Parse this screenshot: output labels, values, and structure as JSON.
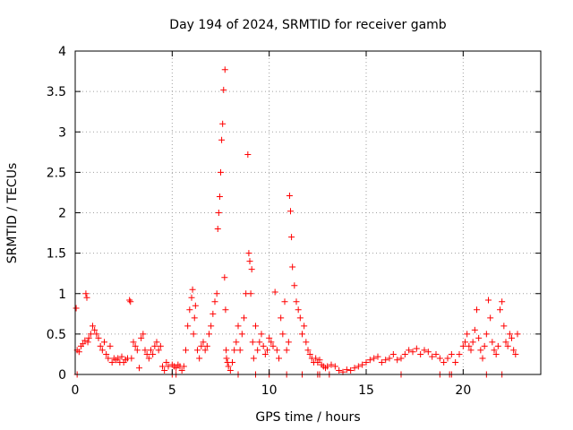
{
  "chart_data": {
    "type": "scatter",
    "title": "Day 194 of 2024, SRMTID for receiver gamb",
    "xlabel": "GPS time / hours",
    "ylabel": "SRMTID / TECUs",
    "xlim": [
      0,
      24
    ],
    "ylim": [
      0,
      4
    ],
    "xticks": [
      0,
      5,
      10,
      15,
      20
    ],
    "xtick_labels": [
      "0",
      "5",
      "10",
      "15",
      "20"
    ],
    "yticks": [
      0,
      0.5,
      1,
      1.5,
      2,
      2.5,
      3,
      3.5,
      4
    ],
    "ytick_labels": [
      "0",
      "0.5",
      "1",
      "1.5",
      "2",
      "2.5",
      "3",
      "3.5",
      "4"
    ],
    "grid": true,
    "marker": "+",
    "color": "#ff0000",
    "series": [
      {
        "name": "SRMTID",
        "x": [
          0.05,
          0.1,
          0.2,
          0.3,
          0.4,
          0.5,
          0.55,
          0.6,
          0.65,
          0.7,
          0.8,
          0.9,
          1.0,
          1.1,
          1.2,
          1.3,
          1.4,
          1.5,
          1.6,
          1.7,
          1.8,
          1.9,
          2.0,
          2.1,
          2.2,
          2.3,
          2.4,
          2.5,
          2.6,
          2.7,
          2.8,
          2.85,
          2.9,
          3.0,
          3.1,
          3.2,
          3.3,
          3.4,
          3.5,
          3.6,
          3.7,
          3.8,
          3.9,
          4.0,
          4.1,
          4.2,
          4.3,
          4.4,
          4.5,
          4.6,
          4.7,
          4.8,
          5.0,
          5.1,
          5.2,
          5.3,
          5.4,
          5.5,
          5.6,
          5.7,
          5.8,
          5.9,
          6.0,
          6.05,
          6.1,
          6.15,
          6.2,
          6.3,
          6.4,
          6.5,
          6.6,
          6.7,
          6.8,
          6.9,
          7.0,
          7.1,
          7.2,
          7.3,
          7.35,
          7.4,
          7.45,
          7.5,
          7.55,
          7.6,
          7.65,
          7.7,
          7.72,
          7.75,
          7.78,
          7.8,
          7.85,
          7.9,
          8.0,
          8.1,
          8.2,
          8.3,
          8.4,
          8.5,
          8.6,
          8.7,
          8.8,
          8.9,
          8.95,
          9.0,
          9.05,
          9.1,
          9.15,
          9.2,
          9.3,
          9.4,
          9.5,
          9.6,
          9.7,
          9.8,
          9.9,
          10.0,
          10.1,
          10.2,
          10.3,
          10.4,
          10.5,
          10.6,
          10.7,
          10.8,
          10.9,
          11.0,
          11.05,
          11.1,
          11.15,
          11.2,
          11.3,
          11.4,
          11.5,
          11.6,
          11.7,
          11.8,
          11.9,
          12.0,
          12.1,
          12.2,
          12.3,
          12.4,
          12.5,
          12.6,
          12.7,
          12.8,
          12.9,
          13.0,
          13.2,
          13.4,
          13.6,
          13.8,
          14.0,
          14.2,
          14.4,
          14.6,
          14.8,
          15.0,
          15.2,
          15.4,
          15.6,
          15.8,
          16.0,
          16.2,
          16.4,
          16.6,
          16.8,
          17.0,
          17.2,
          17.4,
          17.6,
          17.8,
          18.0,
          18.2,
          18.4,
          18.6,
          18.8,
          19.0,
          19.2,
          19.4,
          19.6,
          19.8,
          20.0,
          20.1,
          20.2,
          20.3,
          20.4,
          20.5,
          20.6,
          20.7,
          20.8,
          20.9,
          21.0,
          21.1,
          21.2,
          21.3,
          21.4,
          21.5,
          21.6,
          21.7,
          21.8,
          21.9,
          22.0,
          22.1,
          22.2,
          22.3,
          22.4,
          22.5,
          22.6,
          22.7,
          22.8
        ],
        "values": [
          0.82,
          0.3,
          0.28,
          0.35,
          0.38,
          0.42,
          1.0,
          0.95,
          0.4,
          0.45,
          0.5,
          0.6,
          0.55,
          0.5,
          0.45,
          0.35,
          0.3,
          0.4,
          0.25,
          0.2,
          0.35,
          0.15,
          0.2,
          0.18,
          0.2,
          0.15,
          0.22,
          0.15,
          0.18,
          0.2,
          0.92,
          0.9,
          0.2,
          0.4,
          0.35,
          0.3,
          0.08,
          0.45,
          0.5,
          0.3,
          0.25,
          0.2,
          0.3,
          0.25,
          0.35,
          0.4,
          0.3,
          0.35,
          0.1,
          0.05,
          0.15,
          0.1,
          0.12,
          0.1,
          0.08,
          0.12,
          0.1,
          0.05,
          0.1,
          0.3,
          0.6,
          0.8,
          0.95,
          1.05,
          0.5,
          0.7,
          0.85,
          0.3,
          0.2,
          0.35,
          0.4,
          0.3,
          0.35,
          0.5,
          0.6,
          0.75,
          0.9,
          1.0,
          1.8,
          2.0,
          2.2,
          2.5,
          2.9,
          3.1,
          3.52,
          1.2,
          3.77,
          0.8,
          0.3,
          0.2,
          0.15,
          0.1,
          0.05,
          0.15,
          0.3,
          0.4,
          0.6,
          0.3,
          0.5,
          0.7,
          1.0,
          2.72,
          1.5,
          1.4,
          1.0,
          1.3,
          0.4,
          0.2,
          0.6,
          0.3,
          0.4,
          0.5,
          0.35,
          0.25,
          0.3,
          0.45,
          0.4,
          0.35,
          1.02,
          0.3,
          0.2,
          0.7,
          0.5,
          0.9,
          0.3,
          0.4,
          2.21,
          2.02,
          1.7,
          1.33,
          1.1,
          0.9,
          0.8,
          0.7,
          0.5,
          0.6,
          0.4,
          0.3,
          0.25,
          0.2,
          0.15,
          0.2,
          0.15,
          0.18,
          0.12,
          0.1,
          0.08,
          0.1,
          0.12,
          0.1,
          0.05,
          0.03,
          0.06,
          0.05,
          0.08,
          0.1,
          0.12,
          0.15,
          0.18,
          0.2,
          0.22,
          0.15,
          0.18,
          0.2,
          0.25,
          0.18,
          0.2,
          0.25,
          0.3,
          0.28,
          0.32,
          0.25,
          0.3,
          0.28,
          0.22,
          0.25,
          0.2,
          0.15,
          0.2,
          0.25,
          0.15,
          0.25,
          0.35,
          0.4,
          0.5,
          0.35,
          0.3,
          0.4,
          0.55,
          0.8,
          0.45,
          0.3,
          0.2,
          0.35,
          0.5,
          0.92,
          0.7,
          0.4,
          0.3,
          0.25,
          0.35,
          0.8,
          0.9,
          0.6,
          0.4,
          0.35,
          0.5,
          0.45,
          0.3,
          0.25,
          0.5
        ],
        "zero_x": [
          0.1,
          5.0,
          5.2,
          8.4,
          9.3,
          10.0,
          10.9,
          11.7,
          12.5,
          12.6,
          13.1,
          16.8,
          18.8,
          19.3,
          19.4,
          21.2,
          22.0
        ]
      }
    ]
  }
}
